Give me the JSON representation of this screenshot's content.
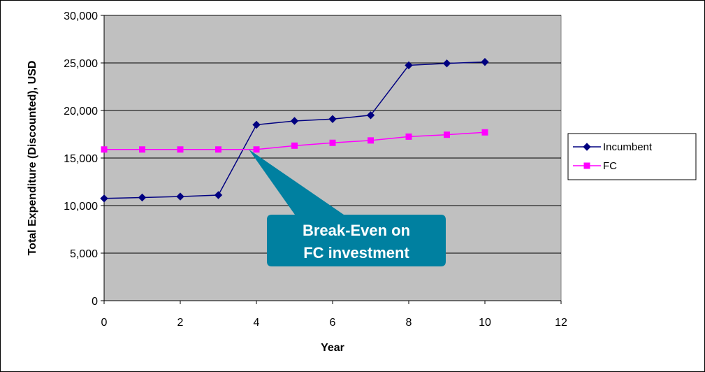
{
  "chart_data": {
    "type": "line",
    "xlabel": "Year",
    "ylabel": "Total Expenditure (Discounted), USD",
    "xlim": [
      0,
      12
    ],
    "ylim": [
      0,
      30000
    ],
    "x_ticks": [
      0,
      2,
      4,
      6,
      8,
      10,
      12
    ],
    "y_ticks": [
      0,
      5000,
      10000,
      15000,
      20000,
      25000,
      30000
    ],
    "x_tick_labels": [
      "0",
      "2",
      "4",
      "6",
      "8",
      "10",
      "12"
    ],
    "y_tick_labels": [
      "0",
      "5,000",
      "10,000",
      "15,000",
      "20,000",
      "25,000",
      "30,000"
    ],
    "grid": true,
    "plot_background": "#c0c0c0",
    "legend_position": "right",
    "x": [
      0,
      1,
      2,
      3,
      4,
      5,
      6,
      7,
      8,
      9,
      10
    ],
    "series": [
      {
        "name": "Incumbent",
        "color": "#000080",
        "marker": "diamond",
        "values": [
          10750,
          10850,
          10950,
          11100,
          18500,
          18900,
          19100,
          19500,
          24750,
          24950,
          25100
        ]
      },
      {
        "name": "FC",
        "color": "#ff00ff",
        "marker": "square",
        "values": [
          15900,
          15900,
          15900,
          15900,
          15900,
          16300,
          16600,
          16850,
          17250,
          17450,
          17700
        ]
      }
    ],
    "annotation": {
      "lines": [
        "Break-Even on",
        "FC investment"
      ],
      "color": "#0080a0",
      "points_to": {
        "x": 3.8,
        "y": 15900
      }
    }
  }
}
